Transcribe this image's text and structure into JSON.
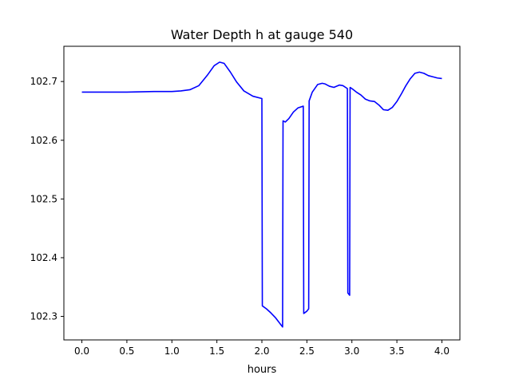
{
  "chart_data": {
    "type": "line",
    "title": "Water Depth h at gauge 540",
    "xlabel": "hours",
    "ylabel": "",
    "xlim": [
      -0.2,
      4.2
    ],
    "ylim": [
      102.26,
      102.76
    ],
    "xticks": [
      0.0,
      0.5,
      1.0,
      1.5,
      2.0,
      2.5,
      3.0,
      3.5,
      4.0
    ],
    "xtick_labels": [
      "0.0",
      "0.5",
      "1.0",
      "1.5",
      "2.0",
      "2.5",
      "3.0",
      "3.5",
      "4.0"
    ],
    "yticks": [
      102.3,
      102.4,
      102.5,
      102.6,
      102.7
    ],
    "ytick_labels": [
      "102.3",
      "102.4",
      "102.5",
      "102.6",
      "102.7"
    ],
    "grid": false,
    "series": [
      {
        "color": "#0000ff",
        "x": [
          0.0,
          0.2,
          0.5,
          0.8,
          1.0,
          1.1,
          1.2,
          1.3,
          1.4,
          1.47,
          1.53,
          1.58,
          1.65,
          1.72,
          1.8,
          1.9,
          2.0,
          2.005,
          2.05,
          2.1,
          2.15,
          2.2,
          2.23,
          2.235,
          2.26,
          2.3,
          2.35,
          2.4,
          2.46,
          2.465,
          2.5,
          2.52,
          2.525,
          2.56,
          2.62,
          2.67,
          2.7,
          2.75,
          2.8,
          2.86,
          2.9,
          2.95,
          2.955,
          2.975,
          2.98,
          3.0,
          3.05,
          3.1,
          3.15,
          3.2,
          3.25,
          3.3,
          3.35,
          3.4,
          3.45,
          3.5,
          3.55,
          3.6,
          3.65,
          3.7,
          3.75,
          3.8,
          3.85,
          3.9,
          3.95,
          4.0
        ],
        "y": [
          102.682,
          102.682,
          102.682,
          102.683,
          102.683,
          102.684,
          102.686,
          102.693,
          102.712,
          102.727,
          102.733,
          102.731,
          102.716,
          102.699,
          102.684,
          102.675,
          102.671,
          102.318,
          102.313,
          102.306,
          102.298,
          102.288,
          102.282,
          102.633,
          102.631,
          102.637,
          102.648,
          102.655,
          102.658,
          102.305,
          102.309,
          102.313,
          102.667,
          102.682,
          102.695,
          102.697,
          102.696,
          102.692,
          102.69,
          102.694,
          102.693,
          102.688,
          102.34,
          102.336,
          102.69,
          102.688,
          102.682,
          102.677,
          102.67,
          102.667,
          102.666,
          102.66,
          102.652,
          102.651,
          102.656,
          102.666,
          102.679,
          102.693,
          102.705,
          102.714,
          102.716,
          102.714,
          102.71,
          102.708,
          102.706,
          102.705
        ]
      }
    ]
  }
}
